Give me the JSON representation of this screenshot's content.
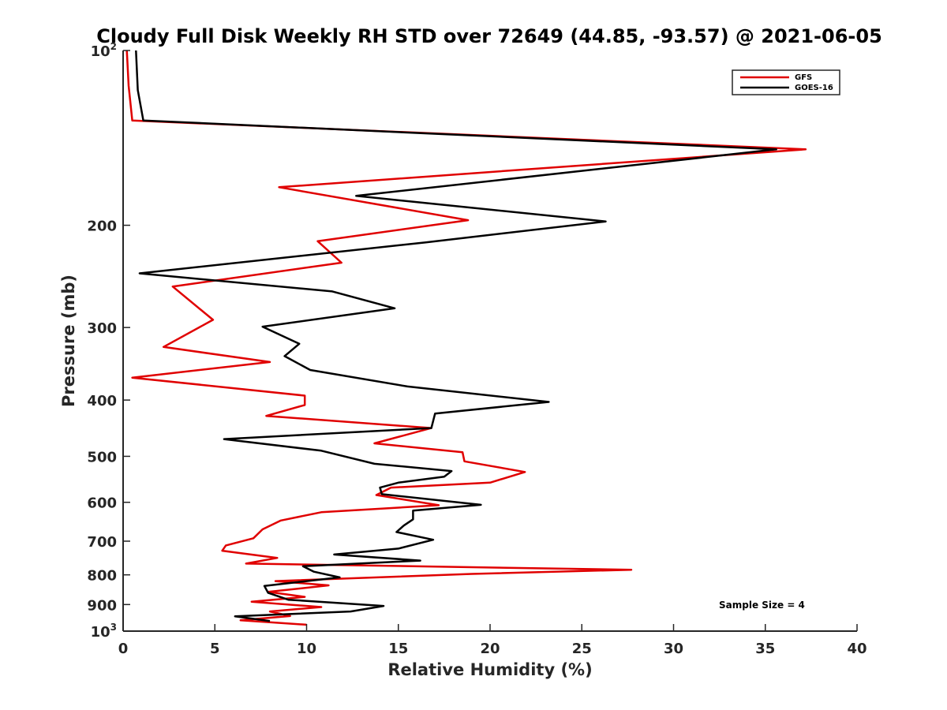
{
  "chart_data": {
    "type": "line",
    "title": "Cloudy Full Disk Weekly RH STD over 72649 (44.85, -93.57) @ 2021-06-05",
    "xlabel": "Relative Humidity (%)",
    "ylabel": "Pressure (mb)",
    "xlim": [
      0,
      40
    ],
    "ylim": [
      100,
      1000
    ],
    "y_scale": "log",
    "y_reversed": true,
    "x_ticks": [
      0,
      5,
      10,
      15,
      20,
      25,
      30,
      35,
      40
    ],
    "y_ticks": [
      {
        "value": 100,
        "base": "10",
        "exp": "2"
      },
      {
        "value": 200,
        "label": "200"
      },
      {
        "value": 300,
        "label": "300"
      },
      {
        "value": 400,
        "label": "400"
      },
      {
        "value": 500,
        "label": "500"
      },
      {
        "value": 600,
        "label": "600"
      },
      {
        "value": 700,
        "label": "700"
      },
      {
        "value": 800,
        "label": "800"
      },
      {
        "value": 900,
        "label": "900"
      },
      {
        "value": 1000,
        "base": "10",
        "exp": "3"
      }
    ],
    "legend_position": "top-right",
    "annotation": "Sample Size = 4",
    "series": [
      {
        "name": "GFS",
        "color": "#e00000",
        "points": [
          [
            0.2,
            100
          ],
          [
            0.3,
            115
          ],
          [
            0.5,
            132
          ],
          [
            37.2,
            148
          ],
          [
            8.5,
            172
          ],
          [
            18.8,
            196
          ],
          [
            10.6,
            213
          ],
          [
            11.9,
            232
          ],
          [
            2.7,
            255
          ],
          [
            4.9,
            291
          ],
          [
            2.2,
            324
          ],
          [
            8.0,
            344
          ],
          [
            0.5,
            366
          ],
          [
            9.9,
            393
          ],
          [
            9.9,
            408
          ],
          [
            7.8,
            426
          ],
          [
            16.8,
            447
          ],
          [
            13.7,
            475
          ],
          [
            18.5,
            492
          ],
          [
            18.6,
            510
          ],
          [
            21.9,
            532
          ],
          [
            20.0,
            555
          ],
          [
            14.6,
            566
          ],
          [
            13.8,
            583
          ],
          [
            17.2,
            607
          ],
          [
            10.8,
            624
          ],
          [
            8.6,
            645
          ],
          [
            7.6,
            668
          ],
          [
            7.1,
            692
          ],
          [
            5.6,
            712
          ],
          [
            5.4,
            727
          ],
          [
            8.4,
            748
          ],
          [
            6.7,
            765
          ],
          [
            27.7,
            784
          ],
          [
            19.0,
            797
          ],
          [
            8.3,
            820
          ],
          [
            11.2,
            834
          ],
          [
            7.9,
            856
          ],
          [
            9.9,
            873
          ],
          [
            7.0,
            890
          ],
          [
            10.8,
            909
          ],
          [
            8.0,
            925
          ],
          [
            9.1,
            942
          ],
          [
            6.4,
            958
          ],
          [
            10.0,
            975
          ]
        ]
      },
      {
        "name": "GOES-16",
        "color": "#000000",
        "points": [
          [
            0.7,
            100
          ],
          [
            0.8,
            117
          ],
          [
            1.1,
            132
          ],
          [
            35.6,
            148
          ],
          [
            12.7,
            178
          ],
          [
            26.3,
            197
          ],
          [
            16.5,
            214
          ],
          [
            0.9,
            242
          ],
          [
            11.4,
            260
          ],
          [
            14.8,
            278
          ],
          [
            7.6,
            299
          ],
          [
            9.6,
            320
          ],
          [
            8.8,
            336
          ],
          [
            10.2,
            355
          ],
          [
            15.5,
            379
          ],
          [
            23.2,
            403
          ],
          [
            17.0,
            422
          ],
          [
            16.8,
            447
          ],
          [
            5.5,
            467
          ],
          [
            10.8,
            489
          ],
          [
            13.7,
            515
          ],
          [
            17.9,
            530
          ],
          [
            17.5,
            542
          ],
          [
            15.0,
            555
          ],
          [
            14.0,
            566
          ],
          [
            14.1,
            581
          ],
          [
            19.5,
            606
          ],
          [
            15.8,
            620
          ],
          [
            15.8,
            642
          ],
          [
            15.3,
            658
          ],
          [
            14.9,
            675
          ],
          [
            16.9,
            696
          ],
          [
            15.0,
            721
          ],
          [
            11.5,
            738
          ],
          [
            16.2,
            756
          ],
          [
            9.8,
            773
          ],
          [
            10.4,
            790
          ],
          [
            11.8,
            808
          ],
          [
            7.7,
            836
          ],
          [
            7.9,
            859
          ],
          [
            9.0,
            883
          ],
          [
            14.2,
            905
          ],
          [
            12.4,
            925
          ],
          [
            6.1,
            943
          ],
          [
            8.0,
            961
          ]
        ]
      }
    ]
  }
}
